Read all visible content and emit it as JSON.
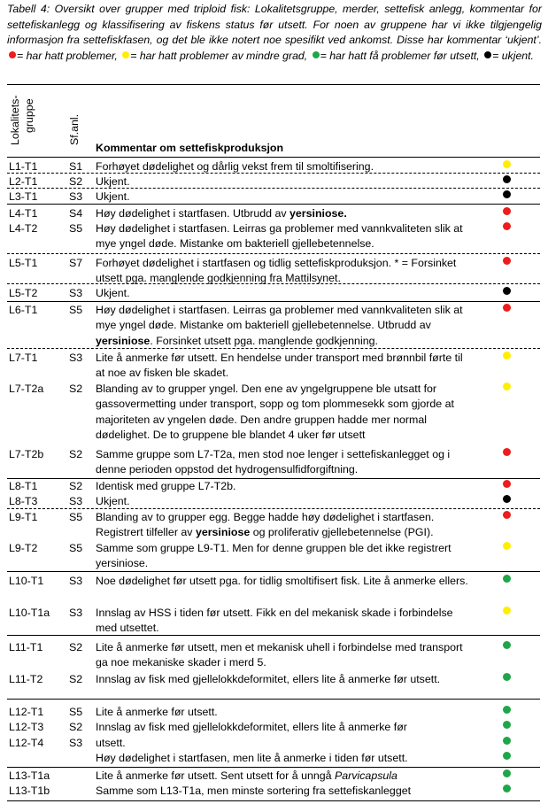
{
  "caption": {
    "text": "Tabell 4: Oversikt over grupper med triploid fisk: Lokalitetsgruppe, merder, settefisk anlegg, kommentar for settefiskanlegg og klassifisering av fiskens status før utsett. For noen av gruppene har vi ikke tilgjengelig informasjon fra settefiskfasen, og det ble ikke notert noe spesifikt ved ankomst. Disse har kommentar ‘ukjent’.",
    "legend_red": "= har hatt problemer,",
    "legend_yellow": "= har hatt problemer av mindre grad,",
    "legend_green": "= har hatt få problemer før utsett,",
    "legend_black": "= ukjent."
  },
  "colors": {
    "red": "#ee1c1c",
    "yellow": "#ffee00",
    "green": "#1fa64a",
    "black": "#000000"
  },
  "headers": {
    "group_line1": "Lokalitets-",
    "group_line2": "gruppe",
    "sfanl": "Sf.anl.",
    "comment": "Kommentar om settefiskproduksjon"
  },
  "rows": [
    {
      "group": "L1-T1",
      "sf": "S1",
      "comment": "Forhøyet dødelighet og dårlig vekst frem til smoltifisering.",
      "status": "yellow"
    },
    {
      "group": "L2-T1",
      "sf": "S2",
      "comment": "Ukjent.",
      "status": "black"
    },
    {
      "group": "L3-T1",
      "sf": "S3",
      "comment": "Ukjent.",
      "status": "black"
    },
    {
      "group": "L4-T1",
      "sf": "S4",
      "comment_pre": "Høy dødelighet i startfasen. Utbrudd av ",
      "comment_bold": "yersiniose.",
      "comment_post": "",
      "status": "red"
    },
    {
      "group": "L4-T2",
      "sf": "S5",
      "comment": "Høy dødelighet i startfasen. Leirras ga problemer med vannkvaliteten slik at mye yngel døde. Mistanke om bakteriell gjellebetennelse.",
      "status": "red"
    },
    {
      "group": "L5-T1",
      "sf": "S7",
      "comment": "Forhøyet dødelighet i startfasen og tidlig settefiskproduksjon. * = Forsinket utsett pga. manglende godkjenning fra Mattilsynet.",
      "status": "red"
    },
    {
      "group": "L5-T2",
      "sf": "S3",
      "comment": "Ukjent.",
      "status": "black"
    },
    {
      "group": "L6-T1",
      "sf": "S5",
      "comment_pre": "Høy dødelighet i startfasen. Leirras ga problemer med vannkvaliteten slik at mye yngel døde. Mistanke om bakteriell gjellebetennelse. Utbrudd av ",
      "comment_bold": "yersiniose",
      "comment_post": ". Forsinket utsett pga. manglende godkjenning.",
      "status": "red"
    },
    {
      "group": "L7-T1",
      "sf": "S3",
      "comment": "Lite å anmerke før utsett. En hendelse under transport med brønnbil førte til at noe av fisken ble skadet.",
      "status": "yellow"
    },
    {
      "group": "L7-T2a",
      "sf": "S2",
      "comment": "Blanding av to grupper yngel. Den ene av yngelgruppene ble utsatt for gassovermetting under transport, sopp og tom plommesekk som gjorde at majoriteten av yngelen døde. Den andre gruppen hadde mer normal dødelighet. De to gruppene ble blandet 4 uker før utsett",
      "status": "yellow"
    },
    {
      "group": "L7-T2b",
      "sf": "S2",
      "comment": "Samme gruppe som L7-T2a, men stod noe lenger i settefiskanlegget og i denne perioden oppstod det hydrogensulfidforgiftning.",
      "status": "red"
    },
    {
      "group": "L8-T1",
      "sf": "S2",
      "comment": "Identisk med gruppe L7-T2b.",
      "status": "red"
    },
    {
      "group": "L8-T3",
      "sf": "S3",
      "comment": "Ukjent.",
      "status": "black"
    },
    {
      "group": "L9-T1",
      "sf": "S5",
      "comment_pre": "Blanding av to grupper egg. Begge hadde høy dødelighet i startfasen. Registrert tilfeller av ",
      "comment_bold": "yersiniose",
      "comment_post": " og proliferativ gjellebetennelse (PGI).",
      "status": "red"
    },
    {
      "group": "L9-T2",
      "sf": "S5",
      "comment": "Samme som gruppe L9-T1. Men for denne gruppen ble det ikke registrert yersiniose.",
      "status": "yellow"
    },
    {
      "group": "L10-T1",
      "sf": "S3",
      "comment": "Noe dødelighet før utsett pga. for tidlig smoltifisert fisk. Lite å anmerke ellers.",
      "status": "green"
    },
    {
      "group": "L10-T1a",
      "sf": "S3",
      "comment": "Innslag av HSS i tiden før utsett. Fikk en del mekanisk skade i forbindelse med utsettet.",
      "status": "yellow"
    },
    {
      "group": "L11-T1",
      "sf": "S2",
      "comment": "Lite å anmerke før utsett, men et mekanisk uhell i forbindelse med transport ga noe mekaniske skader i merd 5.",
      "status": "green"
    },
    {
      "group": "L11-T2",
      "sf": "S2",
      "comment": "Innslag av fisk med gjellelokkdeformitet, ellers lite å anmerke før utsett.",
      "status": "green"
    },
    {
      "group": "L12-T1",
      "sf": "S5",
      "comment": "Lite å anmerke før utsett.",
      "status": "green"
    },
    {
      "group": "L12-T3",
      "sf": "S2",
      "comment": "Innslag av fisk med gjellelokkdeformitet, ellers lite å anmerke før",
      "status": "green"
    },
    {
      "group": "L12-T4",
      "sf": "S3",
      "comment": "utsett.",
      "status": "green"
    },
    {
      "group": "",
      "sf": "",
      "comment": "Høy dødelighet i startfasen, men lite å anmerke i tiden før utsett.",
      "status": "green"
    },
    {
      "group": "L13-T1a",
      "sf": "",
      "comment_pre": "Lite å anmerke før utsett. Sent utsett for å unngå ",
      "comment_italic": "Parvicapsula",
      "status": "green"
    },
    {
      "group": "L13-T1b",
      "sf": "",
      "comment": "Samme som L13-T1a, men minste sortering fra settefiskanlegget",
      "status": "green"
    }
  ]
}
